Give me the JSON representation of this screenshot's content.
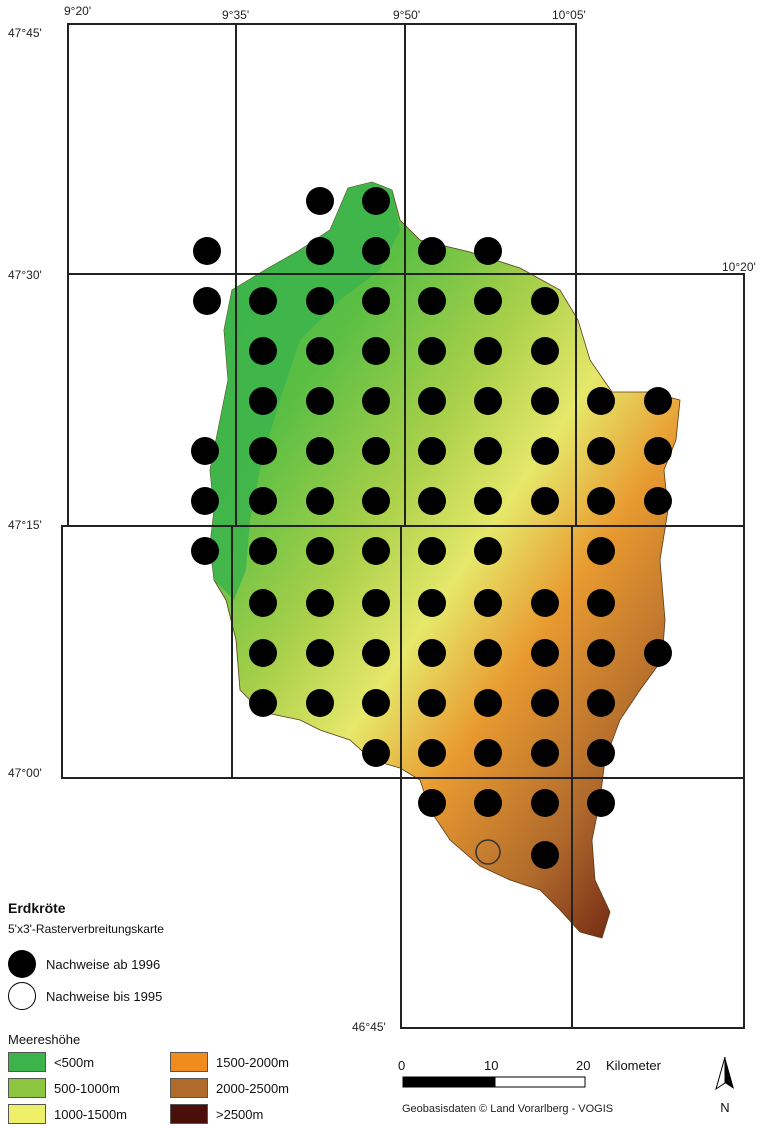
{
  "map": {
    "top_labels": [
      "9°20'",
      "9°35'",
      "9°50'",
      "10°05'"
    ],
    "right_label": "10°20'",
    "left_labels": [
      "47°45'",
      "47°30'",
      "47°15'",
      "47°00'"
    ],
    "bottom_label": "46°45'"
  },
  "legend": {
    "title": "Erdkröte",
    "subtitle": "5'x3'-Rasterverbreitungskarte",
    "after_1996": "Nachweise ab 1996",
    "before_1995": "Nachweise bis 1995",
    "elevation_title": "Meereshöhe",
    "elevation_classes": [
      {
        "label": "<500m",
        "color": "#3cb44b"
      },
      {
        "label": "500-1000m",
        "color": "#8cc63f"
      },
      {
        "label": "1000-1500m",
        "color": "#eef06a"
      },
      {
        "label": "1500-2000m",
        "color": "#f08c1e"
      },
      {
        "label": "2000-2500m",
        "color": "#b06a2c"
      },
      {
        "label": ">2500m",
        "color": "#4a0f0a"
      }
    ]
  },
  "scale": {
    "ticks": [
      "0",
      "10",
      "20"
    ],
    "unit": "Kilometer"
  },
  "north": "N",
  "credit": "Geobasisdaten © Land Vorarlberg - VOGIS"
}
